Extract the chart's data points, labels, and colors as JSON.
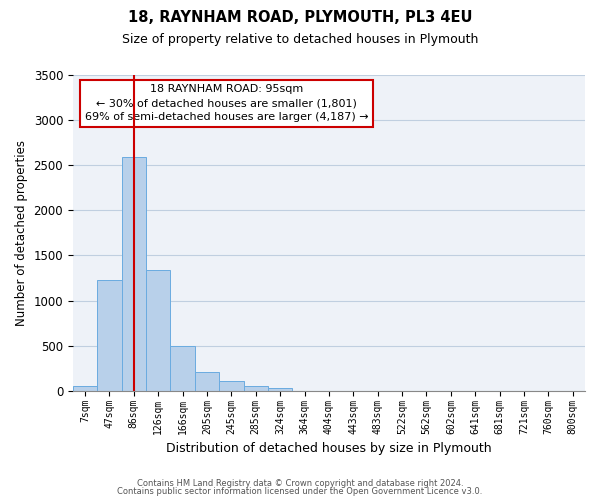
{
  "title1": "18, RAYNHAM ROAD, PLYMOUTH, PL3 4EU",
  "title2": "Size of property relative to detached houses in Plymouth",
  "xlabel": "Distribution of detached houses by size in Plymouth",
  "ylabel": "Number of detached properties",
  "bar_labels": [
    "7sqm",
    "47sqm",
    "86sqm",
    "126sqm",
    "166sqm",
    "205sqm",
    "245sqm",
    "285sqm",
    "324sqm",
    "364sqm",
    "404sqm",
    "443sqm",
    "483sqm",
    "522sqm",
    "562sqm",
    "602sqm",
    "641sqm",
    "681sqm",
    "721sqm",
    "760sqm",
    "800sqm"
  ],
  "bar_values": [
    50,
    1230,
    2590,
    1340,
    500,
    205,
    110,
    50,
    30,
    0,
    0,
    0,
    0,
    0,
    0,
    0,
    0,
    0,
    0,
    0,
    0
  ],
  "bar_color": "#b8d0ea",
  "bar_edgecolor": "#6aabe0",
  "vline_x_index": 2,
  "vline_color": "#cc0000",
  "ylim": [
    0,
    3500
  ],
  "yticks": [
    0,
    500,
    1000,
    1500,
    2000,
    2500,
    3000,
    3500
  ],
  "annotation_title": "18 RAYNHAM ROAD: 95sqm",
  "annotation_line1": "← 30% of detached houses are smaller (1,801)",
  "annotation_line2": "69% of semi-detached houses are larger (4,187) →",
  "annotation_box_color": "#ffffff",
  "annotation_box_edgecolor": "#cc0000",
  "footer1": "Contains HM Land Registry data © Crown copyright and database right 2024.",
  "footer2": "Contains public sector information licensed under the Open Government Licence v3.0.",
  "background_color": "#eef2f8",
  "grid_color": "#c0cfe0"
}
